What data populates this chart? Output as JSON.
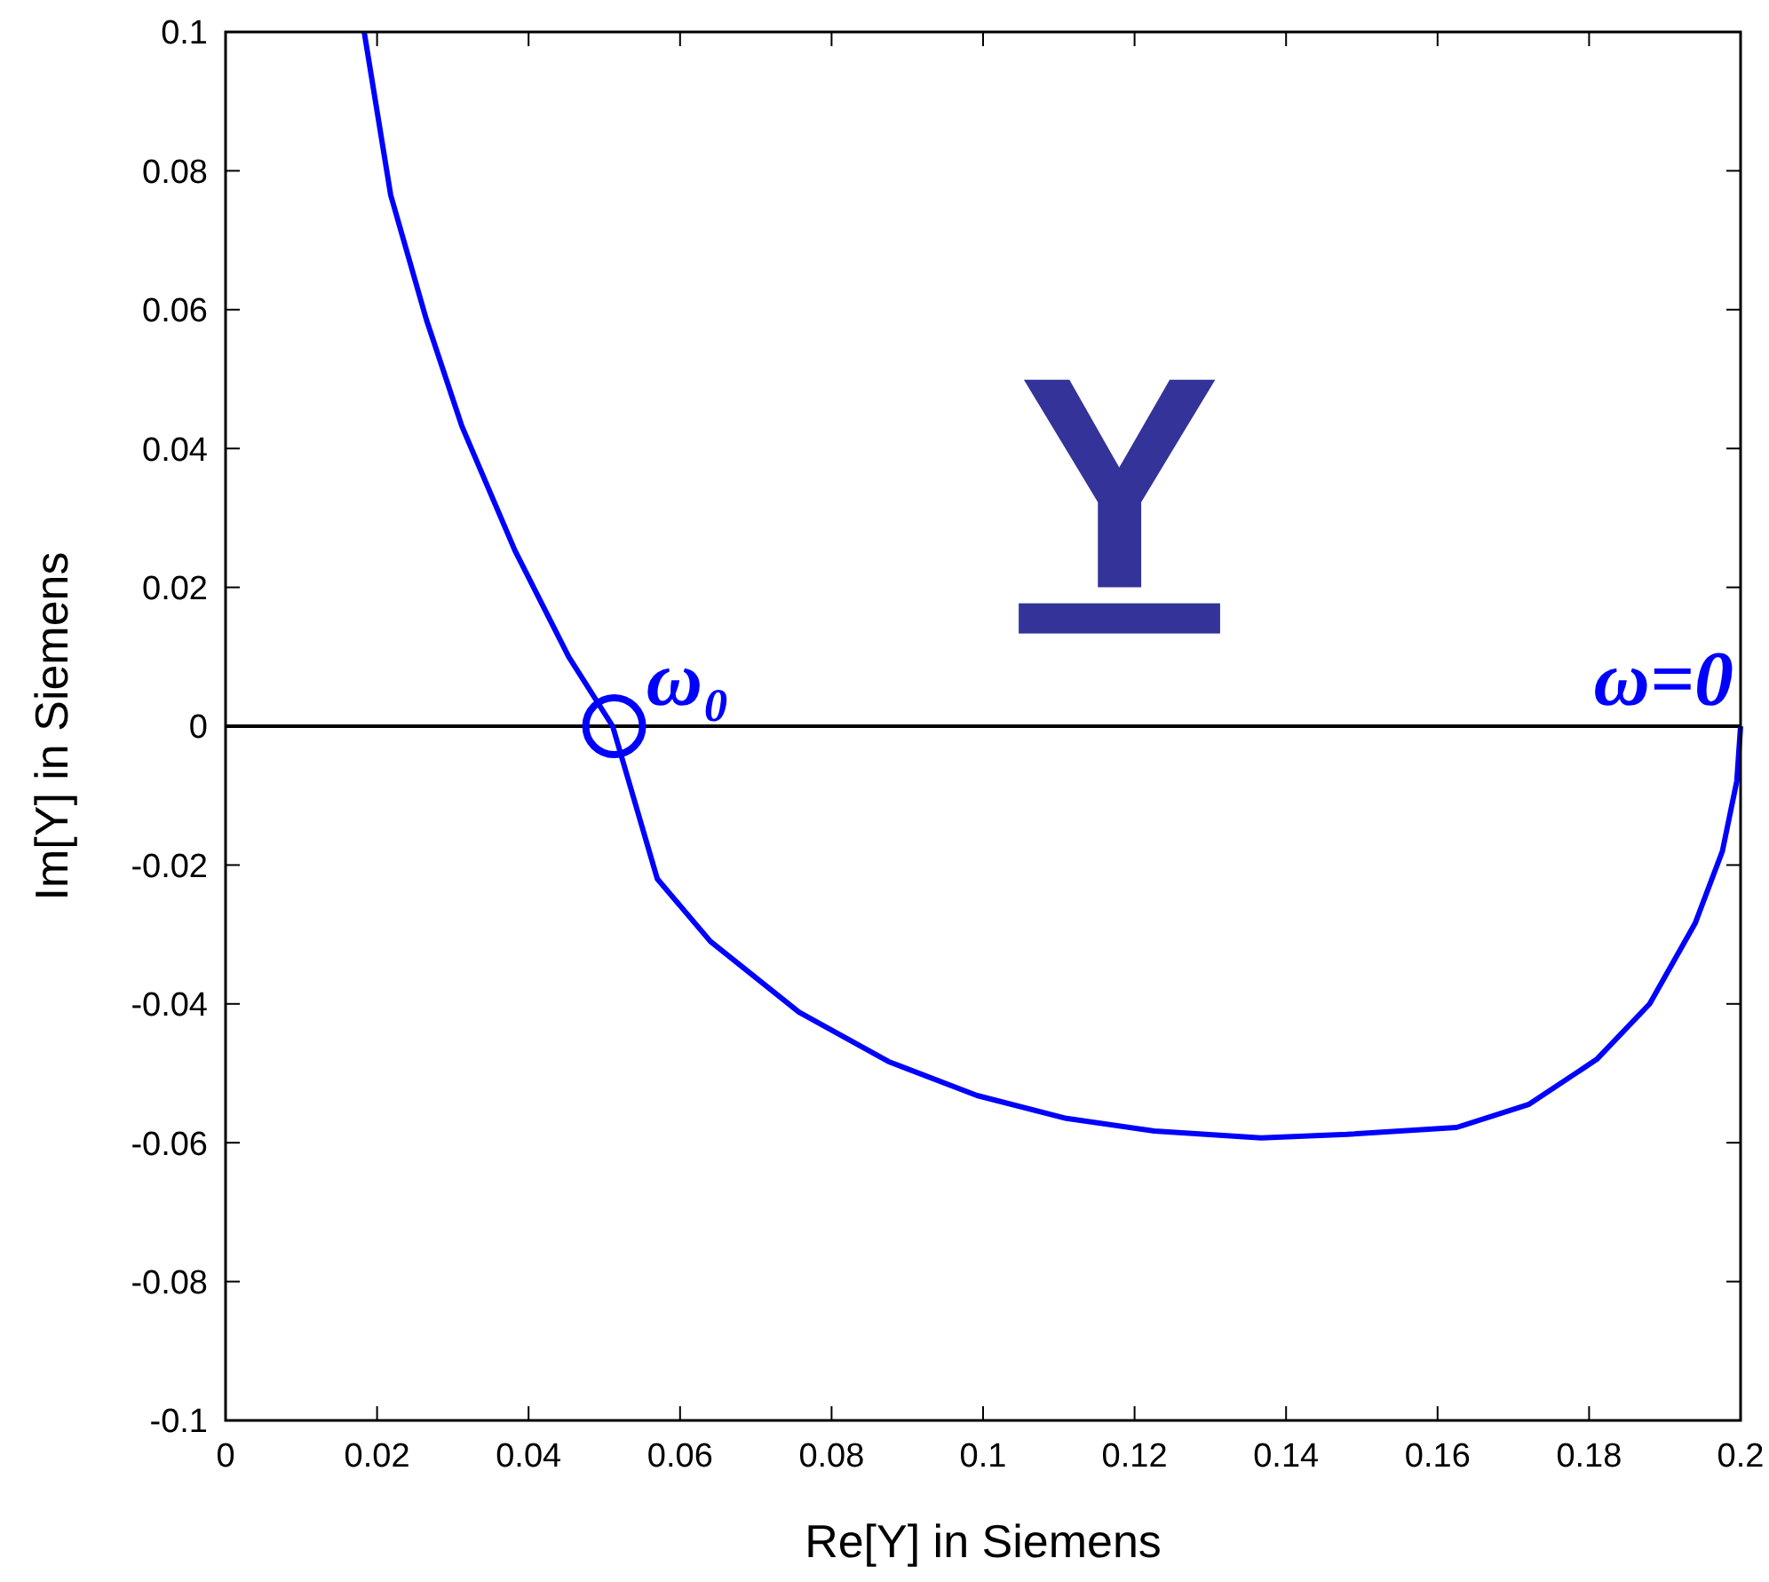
{
  "chart_data": {
    "type": "line",
    "xlabel": "Re[Y] in Siemens",
    "ylabel": "Im[Y] in Siemens",
    "xlim": [
      0,
      0.2
    ],
    "ylim": [
      -0.1,
      0.1
    ],
    "xticks": [
      0,
      0.02,
      0.04,
      0.06,
      0.08,
      0.1,
      0.12,
      0.14,
      0.16,
      0.18,
      0.2
    ],
    "yticks": [
      -0.1,
      -0.08,
      -0.06,
      -0.04,
      -0.02,
      0,
      0.02,
      0.04,
      0.06,
      0.08,
      0.1
    ],
    "grid": false,
    "line_style": "solid",
    "series": [
      {
        "color": "#0000ff",
        "marker": "none",
        "x": [
          0.2,
          0.1995,
          0.1976,
          0.194,
          0.188,
          0.181,
          0.172,
          0.1625,
          0.148,
          0.1367,
          0.1226,
          0.111,
          0.0992,
          0.0875,
          0.0757,
          0.064,
          0.057,
          0.0511,
          0.0453,
          0.0382,
          0.0312,
          0.0265,
          0.0218,
          0.0183
        ],
        "values": [
          0,
          -0.0079,
          -0.018,
          -0.0284,
          -0.04,
          -0.048,
          -0.0545,
          -0.0578,
          -0.0588,
          -0.0593,
          -0.0583,
          -0.0565,
          -0.0532,
          -0.0483,
          -0.0412,
          -0.031,
          -0.022,
          0,
          0.01,
          0.0253,
          0.0432,
          0.0586,
          0.0765,
          0.1
        ]
      },
      {
        "type": "scatter",
        "color": "#0000ff",
        "marker": "circle",
        "x": [
          0.0513
        ],
        "values": [
          0
        ]
      }
    ],
    "ref_lines": [
      {
        "axis": "y",
        "value": 0,
        "color": "#000000"
      }
    ],
    "annotations": [
      {
        "text": "ω₀",
        "x": 0.0513,
        "y": 0
      },
      {
        "text": "ω=0",
        "x": 0.2,
        "y": 0
      },
      "Y"
    ]
  }
}
